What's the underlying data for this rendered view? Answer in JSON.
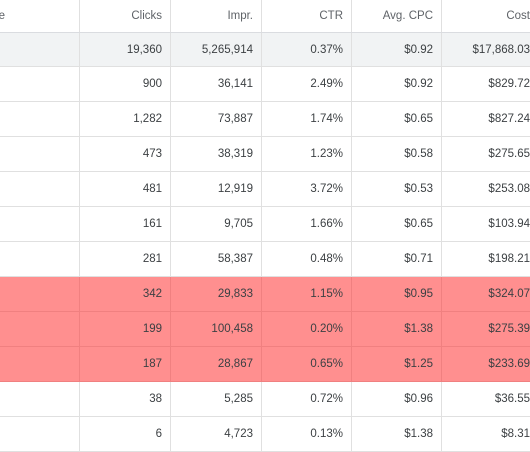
{
  "table": {
    "columns": [
      "e",
      "Clicks",
      "Impr.",
      "CTR",
      "Avg. CPC",
      "Cost"
    ],
    "total": {
      "clicks": "19,360",
      "impr": "5,265,914",
      "ctr": "0.37%",
      "cpc": "$0.92",
      "cost": "$17,868.03"
    },
    "rows": [
      {
        "clicks": "900",
        "impr": "36,141",
        "ctr": "2.49%",
        "cpc": "$0.92",
        "cost": "$829.72",
        "highlighted": false
      },
      {
        "clicks": "1,282",
        "impr": "73,887",
        "ctr": "1.74%",
        "cpc": "$0.65",
        "cost": "$827.24",
        "highlighted": false
      },
      {
        "clicks": "473",
        "impr": "38,319",
        "ctr": "1.23%",
        "cpc": "$0.58",
        "cost": "$275.65",
        "highlighted": false
      },
      {
        "clicks": "481",
        "impr": "12,919",
        "ctr": "3.72%",
        "cpc": "$0.53",
        "cost": "$253.08",
        "highlighted": false
      },
      {
        "clicks": "161",
        "impr": "9,705",
        "ctr": "1.66%",
        "cpc": "$0.65",
        "cost": "$103.94",
        "highlighted": false
      },
      {
        "clicks": "281",
        "impr": "58,387",
        "ctr": "0.48%",
        "cpc": "$0.71",
        "cost": "$198.21",
        "highlighted": false
      },
      {
        "clicks": "342",
        "impr": "29,833",
        "ctr": "1.15%",
        "cpc": "$0.95",
        "cost": "$324.07",
        "highlighted": true
      },
      {
        "clicks": "199",
        "impr": "100,458",
        "ctr": "0.20%",
        "cpc": "$1.38",
        "cost": "$275.39",
        "highlighted": true
      },
      {
        "clicks": "187",
        "impr": "28,867",
        "ctr": "0.65%",
        "cpc": "$1.25",
        "cost": "$233.69",
        "highlighted": true
      },
      {
        "clicks": "38",
        "impr": "5,285",
        "ctr": "0.72%",
        "cpc": "$0.96",
        "cost": "$36.55",
        "highlighted": false
      },
      {
        "clicks": "6",
        "impr": "4,723",
        "ctr": "0.13%",
        "cpc": "$1.38",
        "cost": "$8.31",
        "highlighted": false
      }
    ]
  },
  "colors": {
    "highlight": "#ff8f8f",
    "total_bg": "#f1f3f4",
    "border": "#e0e0e0"
  }
}
